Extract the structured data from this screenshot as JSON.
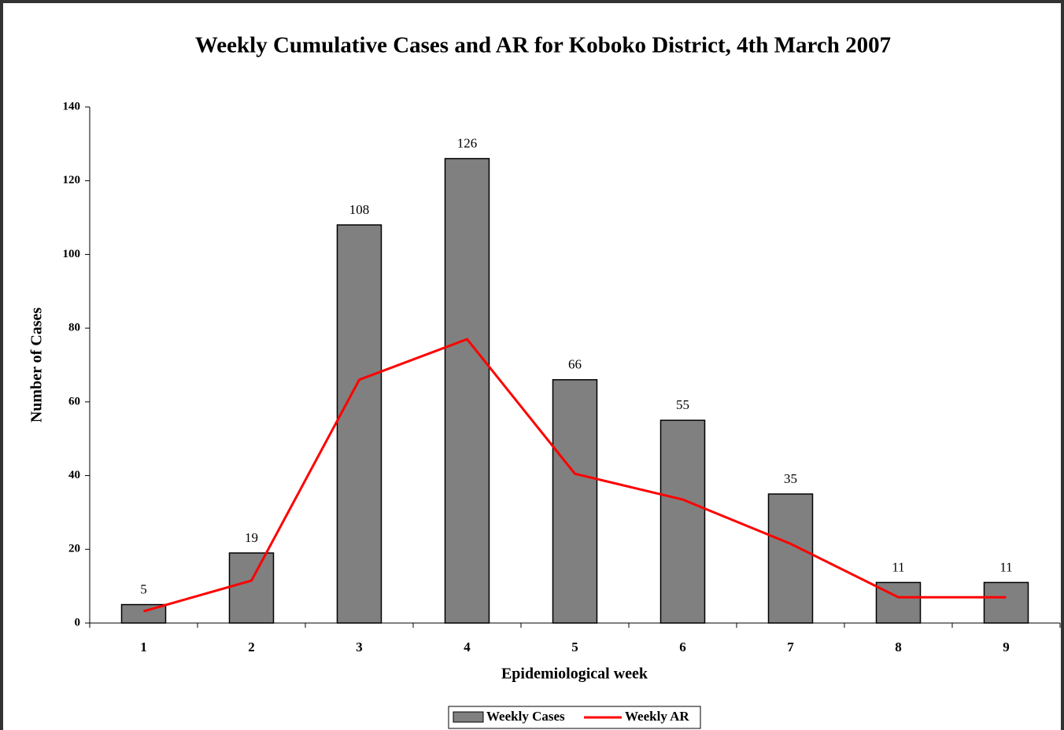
{
  "chart_data": {
    "type": "bar_line",
    "title": "Weekly Cumulative Cases and AR for Koboko District, 4th March 2007",
    "x_label": "Epidemiological week",
    "y_label": "Number of Cases",
    "categories": [
      "1",
      "2",
      "3",
      "4",
      "5",
      "6",
      "7",
      "8",
      "9"
    ],
    "series": [
      {
        "name": "Weekly Cases",
        "type": "bar",
        "color": "#808080",
        "values": [
          5,
          19,
          108,
          126,
          66,
          55,
          35,
          11,
          11
        ]
      },
      {
        "name": "Weekly AR",
        "type": "line",
        "color": "#ff0000",
        "values": [
          3.2,
          11.5,
          66,
          77,
          40.5,
          33.5,
          21.5,
          7,
          7
        ]
      }
    ],
    "ylim": [
      0,
      140
    ],
    "yticks": [
      0,
      20,
      40,
      60,
      80,
      100,
      120,
      140
    ],
    "legend": "bottom"
  }
}
